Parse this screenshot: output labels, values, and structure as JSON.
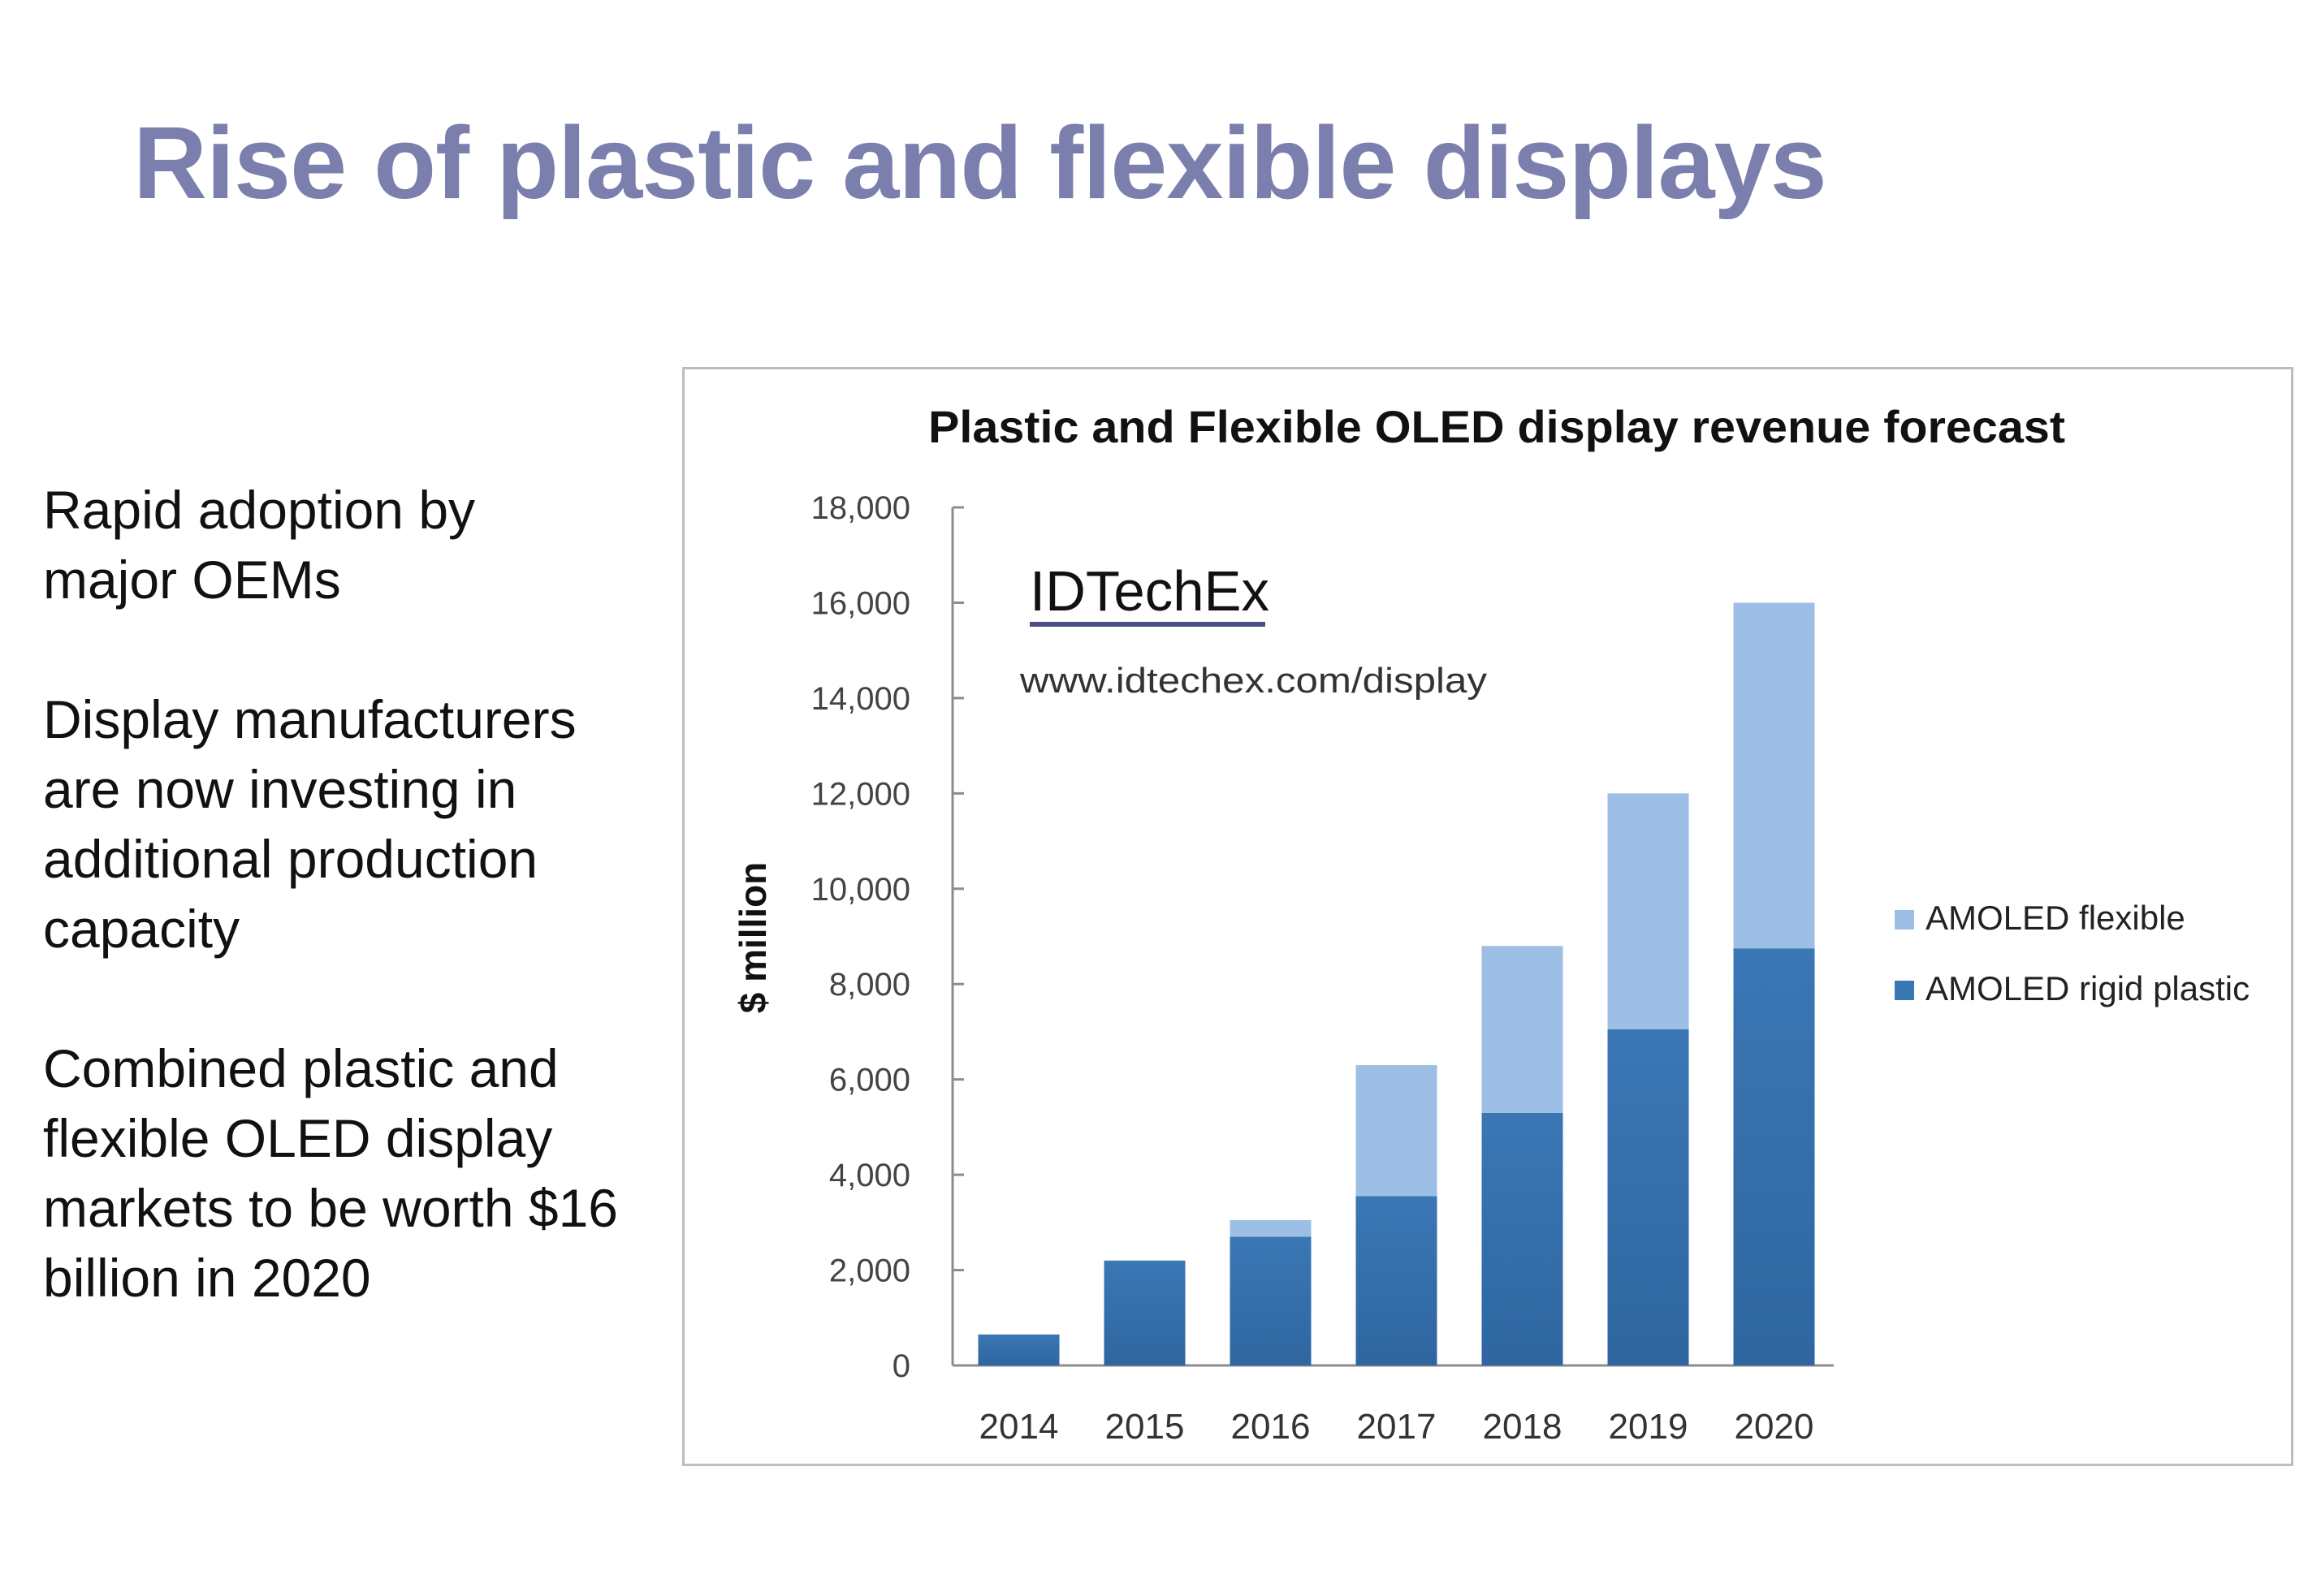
{
  "slide": {
    "title": "Rise of plastic and flexible displays",
    "bullets": [
      "Rapid adoption by major OEMs",
      "Display manufacturers are now investing in additional production capacity",
      "Combined plastic and flexible OLED display markets to be worth $16 billion in 2020"
    ]
  },
  "chart_data": {
    "type": "bar",
    "stacked": true,
    "title": "Plastic and Flexible OLED  display revenue forecast",
    "xlabel": "",
    "ylabel": "$ million",
    "ylim": [
      0,
      18000
    ],
    "yticks": [
      0,
      2000,
      4000,
      6000,
      8000,
      10000,
      12000,
      14000,
      16000,
      18000
    ],
    "ytick_labels": [
      "0",
      "2,000",
      "4,000",
      "6,000",
      "8,000",
      "10,000",
      "12,000",
      "14,000",
      "16,000",
      "18,000"
    ],
    "categories": [
      "2014",
      "2015",
      "2016",
      "2017",
      "2018",
      "2019",
      "2020"
    ],
    "series": [
      {
        "name": "AMOLED rigid plastic",
        "color": "#3a77b5",
        "values": [
          650,
          2200,
          2700,
          3550,
          5300,
          7050,
          8750
        ]
      },
      {
        "name": "AMOLED flexible",
        "color": "#9dbfe5",
        "values": [
          0,
          0,
          350,
          2750,
          3500,
          4950,
          7250
        ]
      }
    ],
    "legend": {
      "position": "right",
      "order": [
        "AMOLED flexible",
        "AMOLED rigid plastic"
      ]
    },
    "grid": false,
    "watermark": {
      "logo": "IDTechEx",
      "url": "www.idtechex.com/display"
    }
  }
}
